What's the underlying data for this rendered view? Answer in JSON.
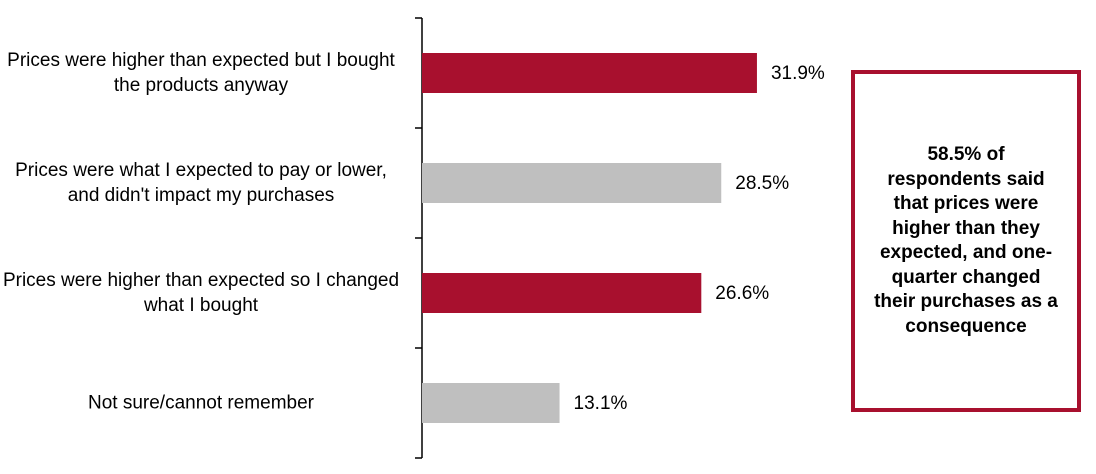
{
  "chart_data": {
    "type": "barh",
    "categories": [
      "Prices were higher than expected but I bought the products anyway",
      "Prices were what I expected to pay or lower, and didn't impact my purchases",
      "Prices were higher than expected so I changed what I bought",
      "Not sure/cannot remember"
    ],
    "values": [
      31.9,
      28.5,
      26.6,
      13.1
    ],
    "value_labels": [
      "31.9%",
      "28.5%",
      "26.6%",
      "13.1%"
    ],
    "colors": [
      "#a8102e",
      "#bfbfbf",
      "#a8102e",
      "#bfbfbf"
    ],
    "annotation": "58.5% of respondents said that prices were higher than they expected, and one-quarter changed their purchases as a consequence"
  }
}
